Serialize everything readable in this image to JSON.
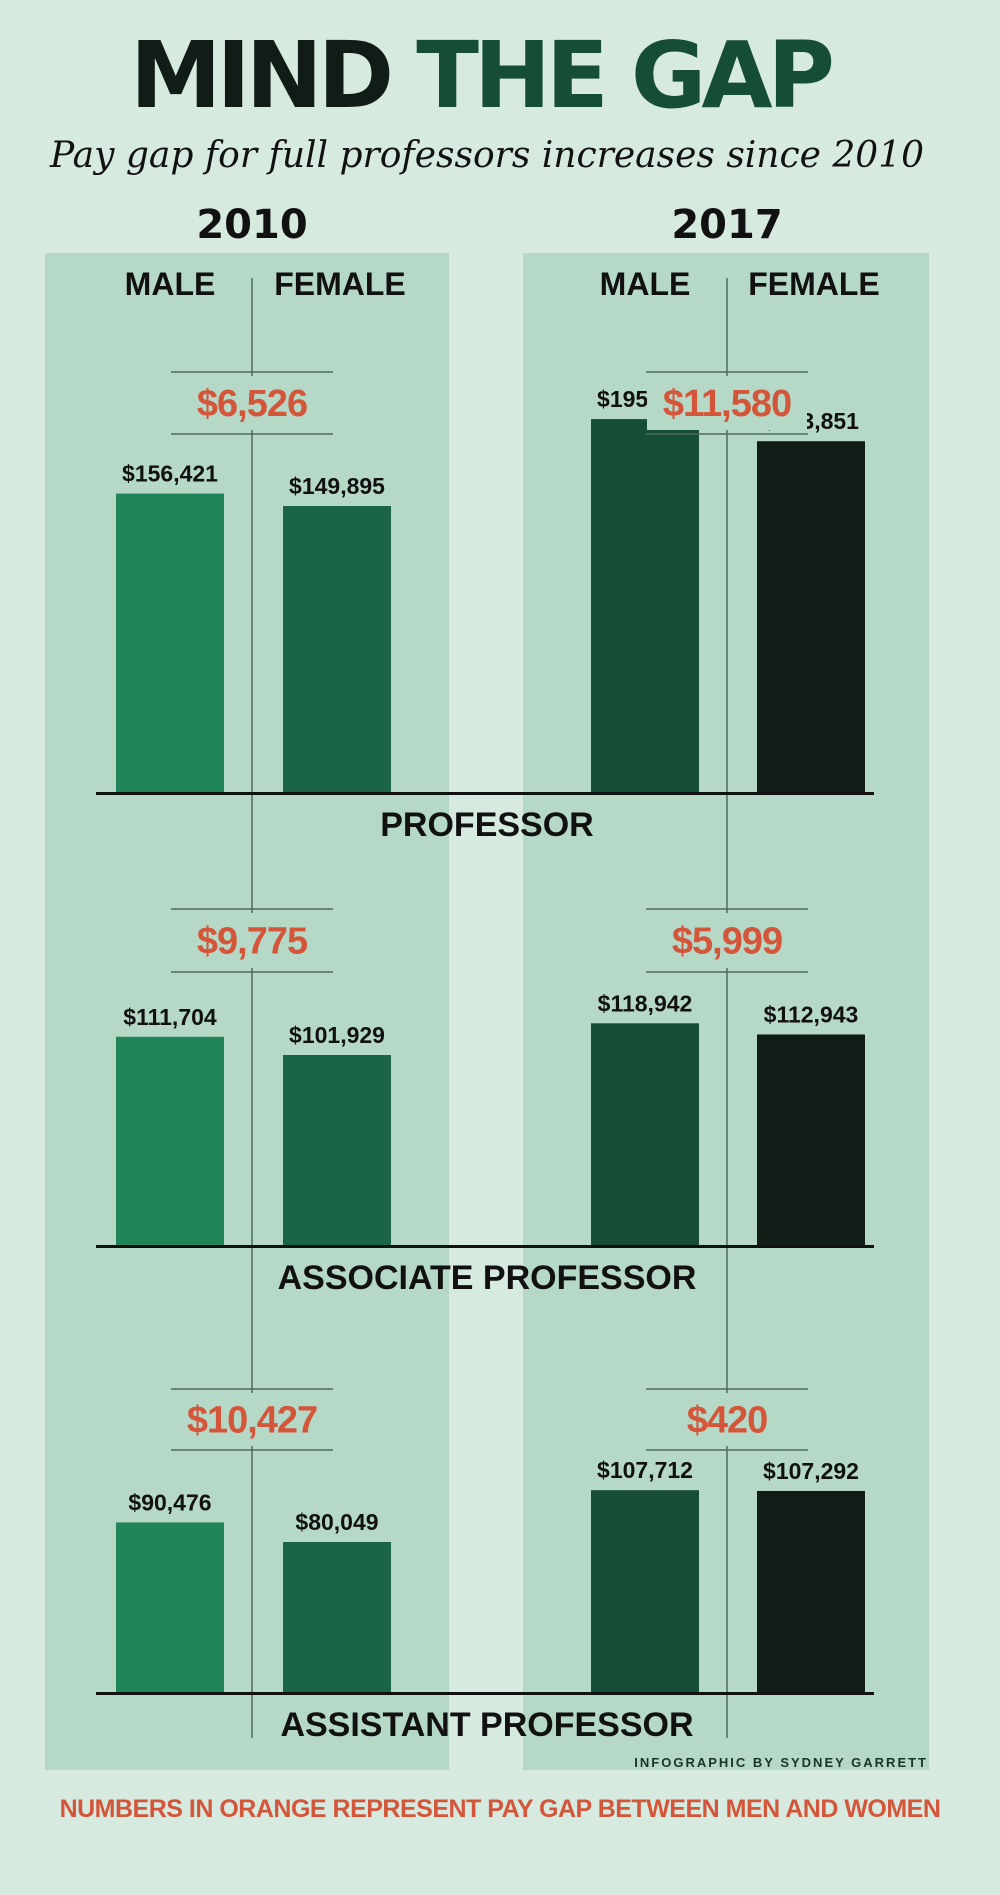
{
  "title": {
    "part1": "MIND ",
    "part2": "THE ",
    "part3": "GAP"
  },
  "subtitle": "Pay gap for full professors increases since 2010",
  "years": [
    "2010",
    "2017"
  ],
  "column_labels": {
    "male": "MALE",
    "female": "FEMALE"
  },
  "credit": "INFOGRAPHIC BY SYDNEY GARRETT",
  "footnote": "NUMBERS IN ORANGE REPRESENT PAY GAP BETWEEN MEN AND WOMEN",
  "colors": {
    "background": "#d7eae0",
    "panel": "#b6d8c6",
    "male_2010": "#1f8458",
    "female_2010": "#1a6546",
    "male_2017": "#164d36",
    "female_2017": "#111c16",
    "gap_orange": "#d4563a"
  },
  "chart_data": {
    "type": "bar",
    "title": "MIND THE GAP",
    "subtitle": "Pay gap for full professors increases since 2010",
    "groups": [
      {
        "category": "PROFESSOR",
        "2010": {
          "male": 156421,
          "female": 149895,
          "gap": 6526,
          "male_label": "$156,421",
          "female_label": "$149,895",
          "gap_label": "$6,526"
        },
        "2017": {
          "male": 195432,
          "female": 183851,
          "gap": 11580,
          "male_label": "$195,432",
          "female_label": "$183,851",
          "gap_label": "$11,580"
        }
      },
      {
        "category": "ASSOCIATE PROFESSOR",
        "2010": {
          "male": 111704,
          "female": 101929,
          "gap": 9775,
          "male_label": "$111,704",
          "female_label": "$101,929",
          "gap_label": "$9,775"
        },
        "2017": {
          "male": 118942,
          "female": 112943,
          "gap": 5999,
          "male_label": "$118,942",
          "female_label": "$112,943",
          "gap_label": "$5,999"
        }
      },
      {
        "category": "ASSISTANT PROFESSOR",
        "2010": {
          "male": 90476,
          "female": 80049,
          "gap": 10427,
          "male_label": "$90,476",
          "female_label": "$80,049",
          "gap_label": "$10,427"
        },
        "2017": {
          "male": 107712,
          "female": 107292,
          "gap": 420,
          "male_label": "$107,712",
          "female_label": "$107,292",
          "gap_label": "$420"
        }
      }
    ],
    "legend": "none",
    "grid": false
  }
}
